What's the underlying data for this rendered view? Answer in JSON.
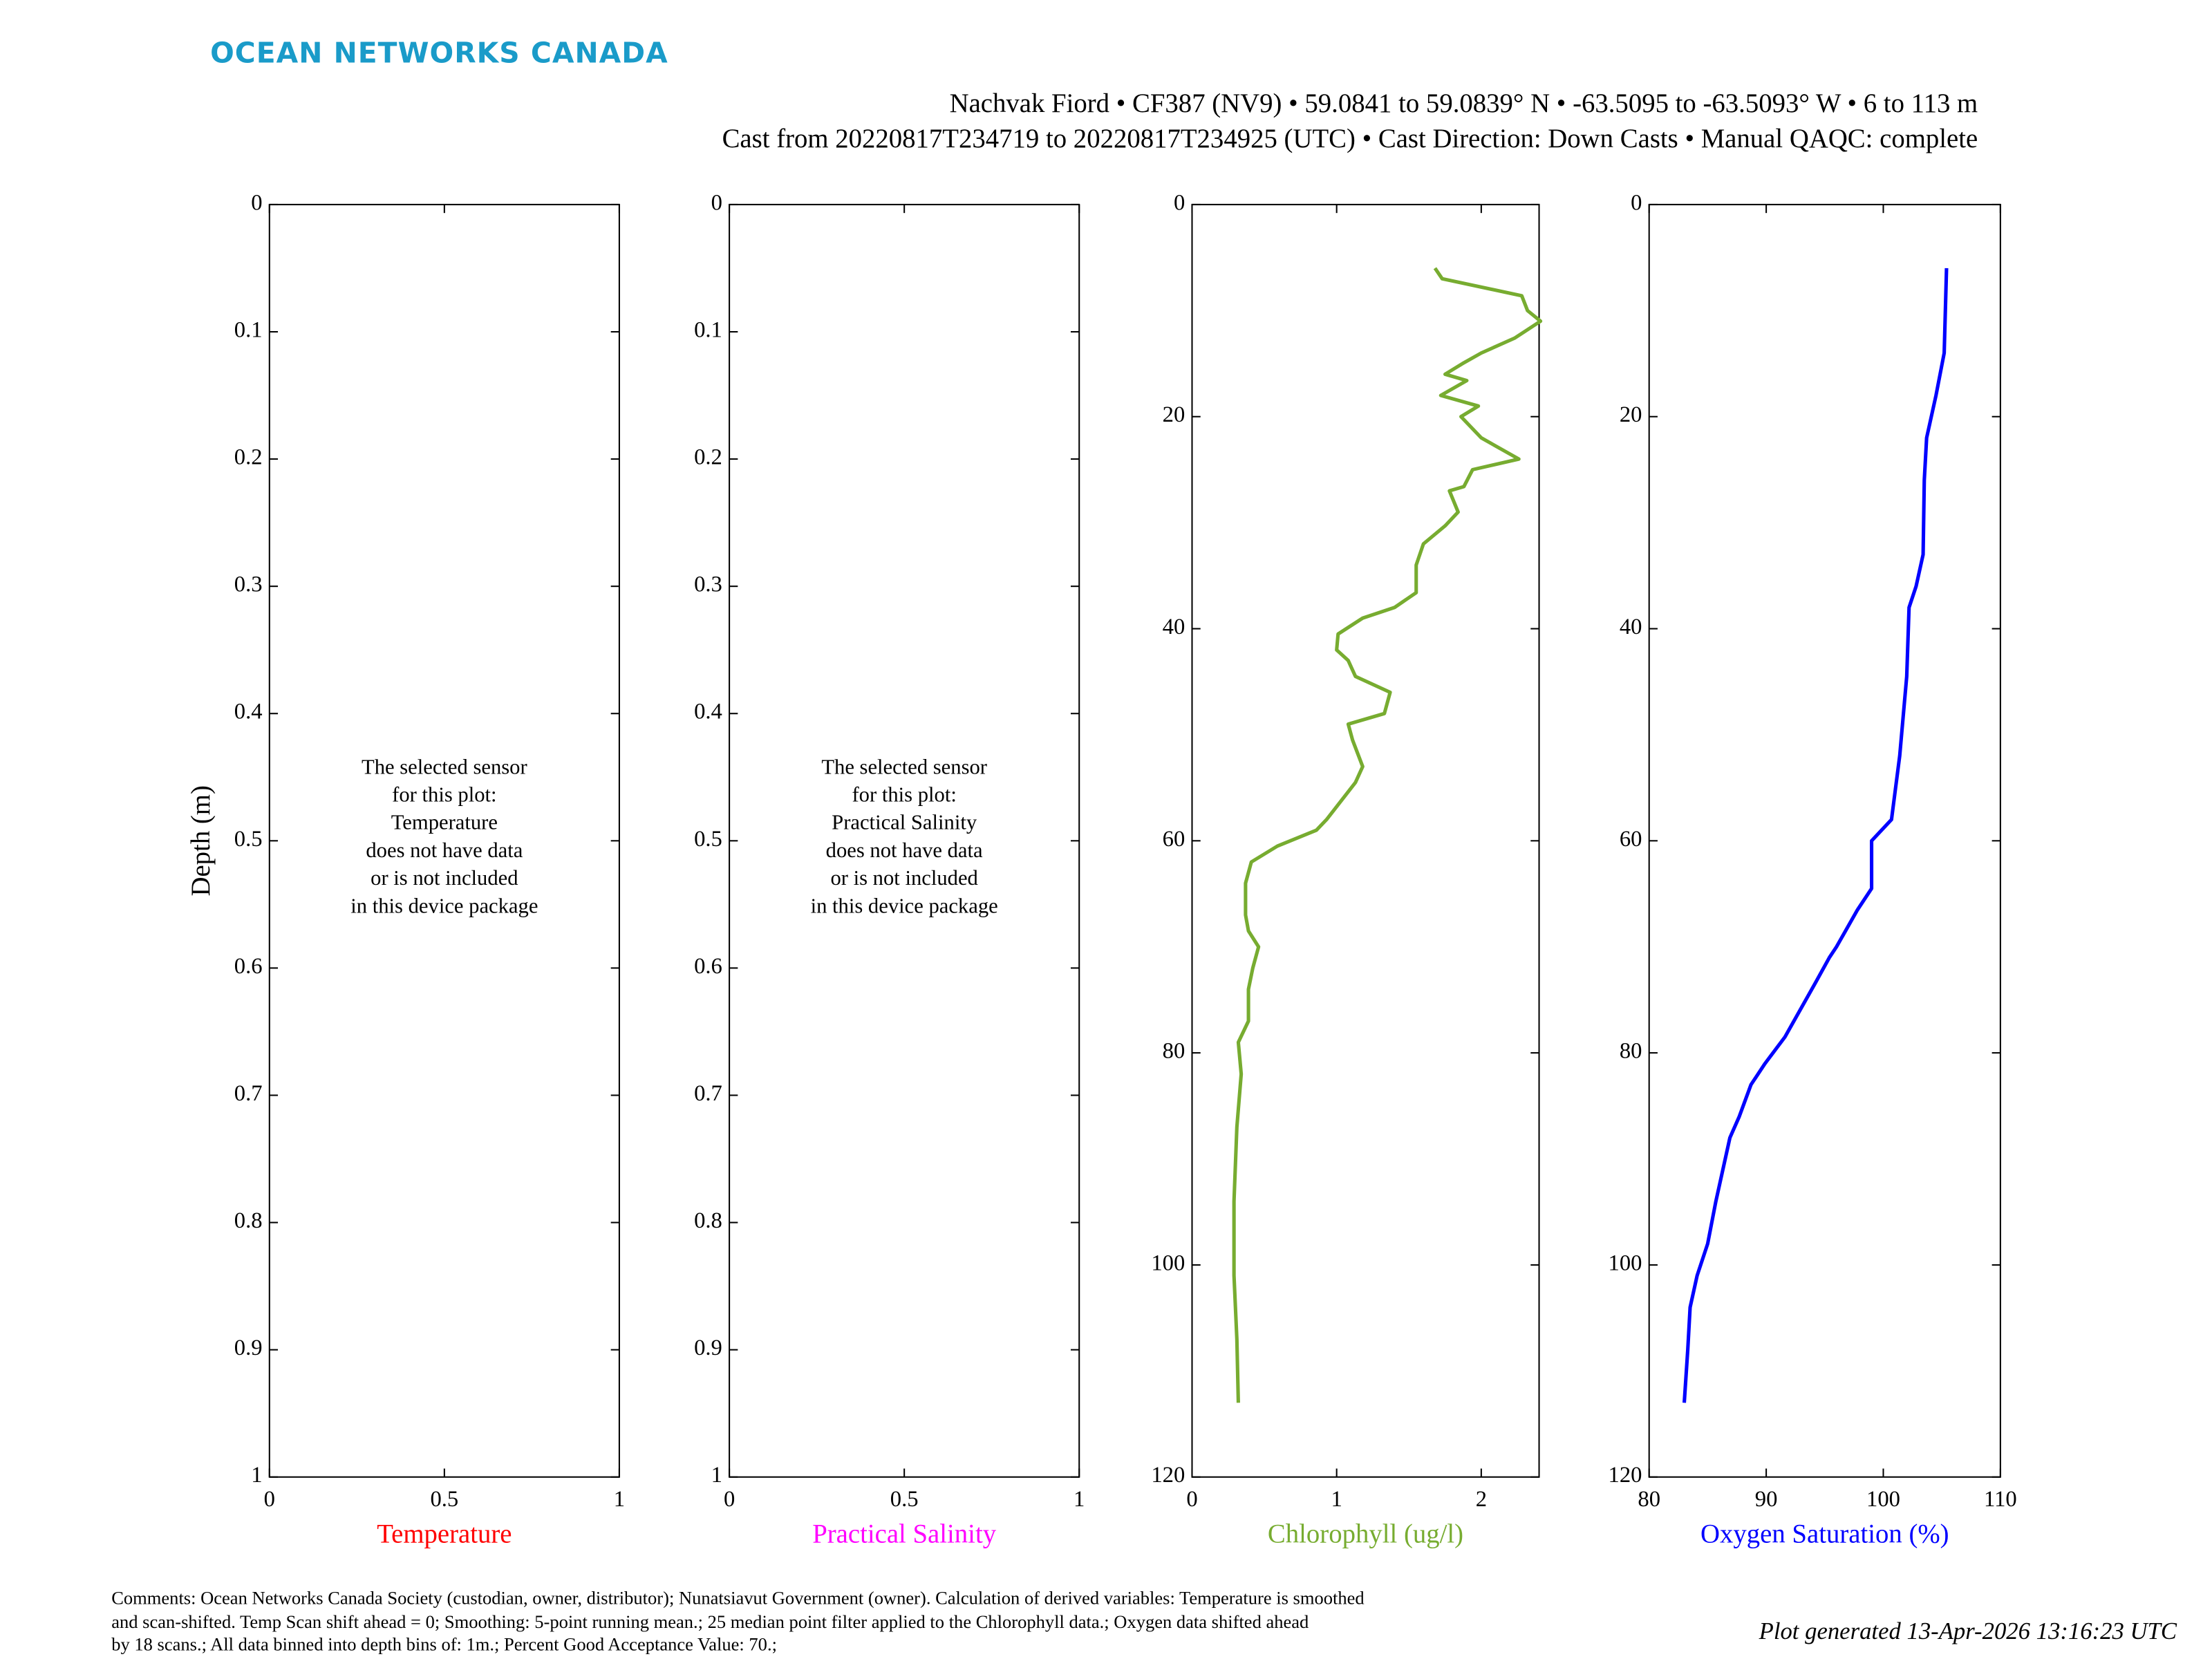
{
  "header": {
    "logo": "OCEAN NETWORKS CANADA",
    "title_lines": [
      "Nachvak Fiord • CF387 (NV9) • 59.0841 to 59.0839° N • -63.5095 to -63.5093° W • 6 to 113 m",
      "Cast from 20220817T234719 to 20220817T234925 (UTC) • Cast Direction: Down Casts • Manual QAQC: complete"
    ]
  },
  "footer": {
    "comments": [
      "Comments: Ocean Networks Canada Society (custodian, owner, distributor); Nunatsiavut Government (owner). Calculation of derived variables: Temperature is smoothed",
      "and scan-shifted. Temp Scan shift ahead = 0; Smoothing: 5-point running mean.; 25 median point filter applied to the Chlorophyll data.; Oxygen data shifted ahead",
      "by 18 scans.; All data binned into depth bins of: 1m.; Percent Good Acceptance Value: 70.;"
    ],
    "generated": "Plot generated 13-Apr-2026 13:16:23 UTC"
  },
  "chart_data": [
    {
      "type": "profile",
      "ylabel": "Depth (m)",
      "xlabel": "Temperature",
      "xlabel_color": "#ff0000",
      "xlim": [
        0,
        1
      ],
      "xticks": [
        0,
        0.5,
        1
      ],
      "ylim": [
        0,
        1
      ],
      "yticks": [
        0,
        0.1,
        0.2,
        0.3,
        0.4,
        0.5,
        0.6,
        0.7,
        0.8,
        0.9,
        1
      ],
      "y_reversed": true,
      "note": [
        "The selected sensor",
        "for this plot:",
        "Temperature",
        "does not have data",
        "or is not included",
        "in this device package"
      ],
      "series": []
    },
    {
      "type": "profile",
      "xlabel": "Practical Salinity",
      "xlabel_color": "#ff00ff",
      "xlim": [
        0,
        1
      ],
      "xticks": [
        0,
        0.5,
        1
      ],
      "ylim": [
        0,
        1
      ],
      "yticks": [
        0,
        0.1,
        0.2,
        0.3,
        0.4,
        0.5,
        0.6,
        0.7,
        0.8,
        0.9,
        1
      ],
      "y_reversed": true,
      "note": [
        "The selected sensor",
        "for this plot:",
        "Practical Salinity",
        "does not have data",
        "or is not included",
        "in this device package"
      ],
      "series": []
    },
    {
      "type": "profile",
      "xlabel": "Chlorophyll (ug/l)",
      "xlabel_color": "#77ac30",
      "xlim": [
        0,
        2.4
      ],
      "xticks": [
        0,
        1,
        2
      ],
      "ylim": [
        0,
        120
      ],
      "yticks": [
        0,
        20,
        40,
        60,
        80,
        100,
        120
      ],
      "y_reversed": true,
      "series": [
        {
          "color": "#77ac30",
          "depth": [
            6,
            7,
            8.6,
            10,
            11,
            12.6,
            14,
            15,
            16,
            16.6,
            18,
            19,
            20,
            22,
            24,
            25,
            26.6,
            27,
            29,
            30.3,
            32,
            34,
            36.6,
            38,
            39,
            40.5,
            42,
            43,
            44.5,
            46,
            48,
            49,
            50.5,
            53,
            54.5,
            58,
            59,
            60.5,
            62,
            64,
            67,
            68.5,
            70,
            72,
            74,
            77,
            79,
            82,
            87,
            94,
            101,
            107,
            113
          ],
          "values": [
            1.68,
            1.73,
            2.28,
            2.32,
            2.41,
            2.23,
            2.0,
            1.87,
            1.75,
            1.9,
            1.72,
            1.98,
            1.86,
            2.0,
            2.26,
            1.94,
            1.88,
            1.78,
            1.84,
            1.75,
            1.6,
            1.55,
            1.55,
            1.4,
            1.18,
            1.01,
            1.0,
            1.08,
            1.13,
            1.37,
            1.33,
            1.08,
            1.11,
            1.18,
            1.13,
            0.93,
            0.86,
            0.59,
            0.41,
            0.37,
            0.37,
            0.39,
            0.46,
            0.42,
            0.39,
            0.39,
            0.32,
            0.34,
            0.31,
            0.29,
            0.29,
            0.31,
            0.32
          ]
        }
      ]
    },
    {
      "type": "profile",
      "xlabel": "Oxygen Saturation (%)",
      "xlabel_color": "#0000ff",
      "xlim": [
        80,
        110
      ],
      "xticks": [
        80,
        90,
        100,
        110
      ],
      "ylim": [
        0,
        120
      ],
      "yticks": [
        0,
        20,
        40,
        60,
        80,
        100,
        120
      ],
      "y_reversed": true,
      "series": [
        {
          "color": "#0000ff",
          "depth": [
            6,
            14,
            18,
            22,
            26,
            33,
            36,
            38,
            44.5,
            52,
            58,
            60,
            64.5,
            66.5,
            70,
            71,
            73.4,
            78.5,
            81,
            83,
            86,
            88,
            94,
            98,
            101,
            104,
            108,
            113
          ],
          "values": [
            105.4,
            105.2,
            104.5,
            103.7,
            103.5,
            103.4,
            102.8,
            102.2,
            102,
            101.4,
            100.7,
            99,
            99,
            97.8,
            96,
            95.4,
            94.2,
            91.6,
            89.9,
            88.7,
            87.7,
            86.9,
            85.7,
            85,
            84.1,
            83.5,
            83.3,
            83
          ]
        }
      ]
    }
  ]
}
